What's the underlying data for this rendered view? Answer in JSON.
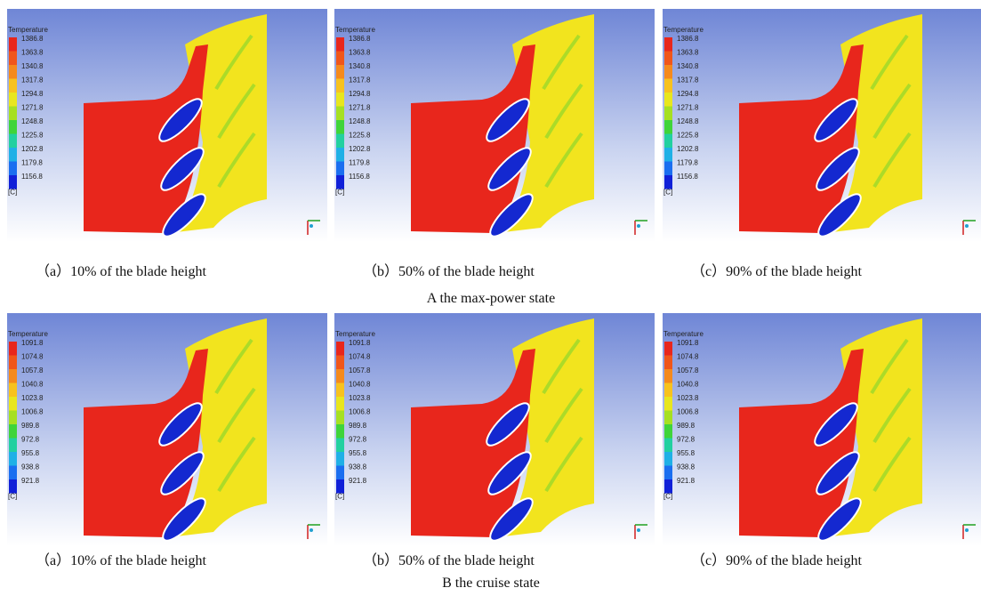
{
  "rows": [
    {
      "title": "A  the max-power state",
      "panels": [
        {
          "legend_title": "Temperature",
          "legend_labels": [
            "1386.8",
            "1363.8",
            "1340.8",
            "1317.8",
            "1294.8",
            "1271.8",
            "1248.8",
            "1225.8",
            "1202.8",
            "1179.8",
            "1156.8"
          ],
          "unit": "[C]",
          "caption": "（a）10% of the blade height"
        },
        {
          "legend_title": "Temperature",
          "legend_labels": [
            "1386.8",
            "1363.8",
            "1340.8",
            "1317.8",
            "1294.8",
            "1271.8",
            "1248.8",
            "1225.8",
            "1202.8",
            "1179.8",
            "1156.8"
          ],
          "unit": "[C]",
          "caption": "（b）50% of the blade height"
        },
        {
          "legend_title": "Temperature",
          "legend_labels": [
            "1386.8",
            "1363.8",
            "1340.8",
            "1317.8",
            "1294.8",
            "1271.8",
            "1248.8",
            "1225.8",
            "1202.8",
            "1179.8",
            "1156.8"
          ],
          "unit": "[C]",
          "caption": "（c）90% of the blade height"
        }
      ]
    },
    {
      "title": "B  the cruise state",
      "panels": [
        {
          "legend_title": "Temperature",
          "legend_labels": [
            "1091.8",
            "1074.8",
            "1057.8",
            "1040.8",
            "1023.8",
            "1006.8",
            "989.8",
            "972.8",
            "955.8",
            "938.8",
            "921.8"
          ],
          "unit": "[C]",
          "caption": "（a）10% of the blade height"
        },
        {
          "legend_title": "Temperature",
          "legend_labels": [
            "1091.8",
            "1074.8",
            "1057.8",
            "1040.8",
            "1023.8",
            "1006.8",
            "989.8",
            "972.8",
            "955.8",
            "938.8",
            "921.8"
          ],
          "unit": "[C]",
          "caption": "（b）50% of the blade height"
        },
        {
          "legend_title": "Temperature",
          "legend_labels": [
            "1091.8",
            "1074.8",
            "1057.8",
            "1040.8",
            "1023.8",
            "1006.8",
            "989.8",
            "972.8",
            "955.8",
            "938.8",
            "921.8"
          ],
          "unit": "[C]",
          "caption": "（c）90% of the blade height"
        }
      ]
    }
  ]
}
